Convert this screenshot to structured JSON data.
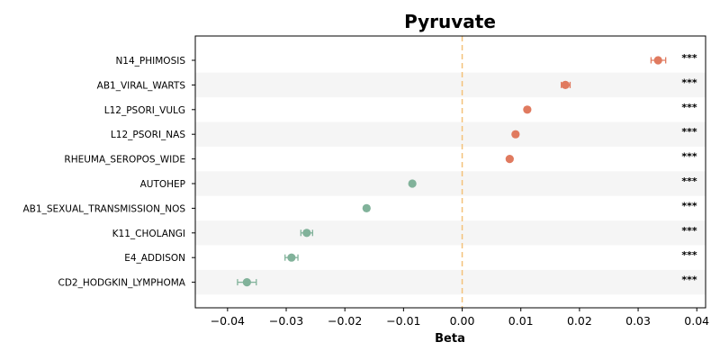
{
  "chart_data": {
    "type": "forest",
    "title": "Pyruvate",
    "xlabel": "Beta",
    "ylabel": "",
    "xlim": [
      -0.0455,
      0.0415
    ],
    "xticks": [
      -0.04,
      -0.03,
      -0.02,
      -0.01,
      0.0,
      0.01,
      0.02,
      0.03,
      0.04
    ],
    "xtick_labels": [
      "−0.04",
      "−0.03",
      "−0.02",
      "−0.01",
      "0.00",
      "0.01",
      "0.02",
      "0.03",
      "0.04"
    ],
    "reference_line": 0.0,
    "grid": false,
    "row_striping": true,
    "colors": {
      "positive": "#E07A5F",
      "negative": "#81B29A",
      "reference_line": "#F4C17A",
      "stripe": "#F5F5F5"
    },
    "rows": [
      {
        "label": "N14_PHIMOSIS",
        "beta": 0.0334,
        "ci_low": 0.0322,
        "ci_high": 0.0347,
        "significance": "***"
      },
      {
        "label": "AB1_VIRAL_WARTS",
        "beta": 0.0176,
        "ci_low": 0.0169,
        "ci_high": 0.0184,
        "significance": "***"
      },
      {
        "label": "L12_PSORI_VULG",
        "beta": 0.0111,
        "ci_low": 0.0107,
        "ci_high": 0.0115,
        "significance": "***"
      },
      {
        "label": "L12_PSORI_NAS",
        "beta": 0.0091,
        "ci_low": 0.0087,
        "ci_high": 0.0095,
        "significance": "***"
      },
      {
        "label": "RHEUMA_SEROPOS_WIDE",
        "beta": 0.0081,
        "ci_low": 0.0078,
        "ci_high": 0.0084,
        "significance": "***"
      },
      {
        "label": "AUTOHEP",
        "beta": -0.0085,
        "ci_low": -0.0088,
        "ci_high": -0.0082,
        "significance": "***"
      },
      {
        "label": "AB1_SEXUAL_TRANSMISSION_NOS",
        "beta": -0.0163,
        "ci_low": -0.0167,
        "ci_high": -0.0159,
        "significance": "***"
      },
      {
        "label": "K11_CHOLANGI",
        "beta": -0.0265,
        "ci_low": -0.0275,
        "ci_high": -0.0255,
        "significance": "***"
      },
      {
        "label": "E4_ADDISON",
        "beta": -0.0291,
        "ci_low": -0.0302,
        "ci_high": -0.028,
        "significance": "***"
      },
      {
        "label": "CD2_HODGKIN_LYMPHOMA",
        "beta": -0.0367,
        "ci_low": -0.0383,
        "ci_high": -0.0351,
        "significance": "***"
      }
    ]
  }
}
